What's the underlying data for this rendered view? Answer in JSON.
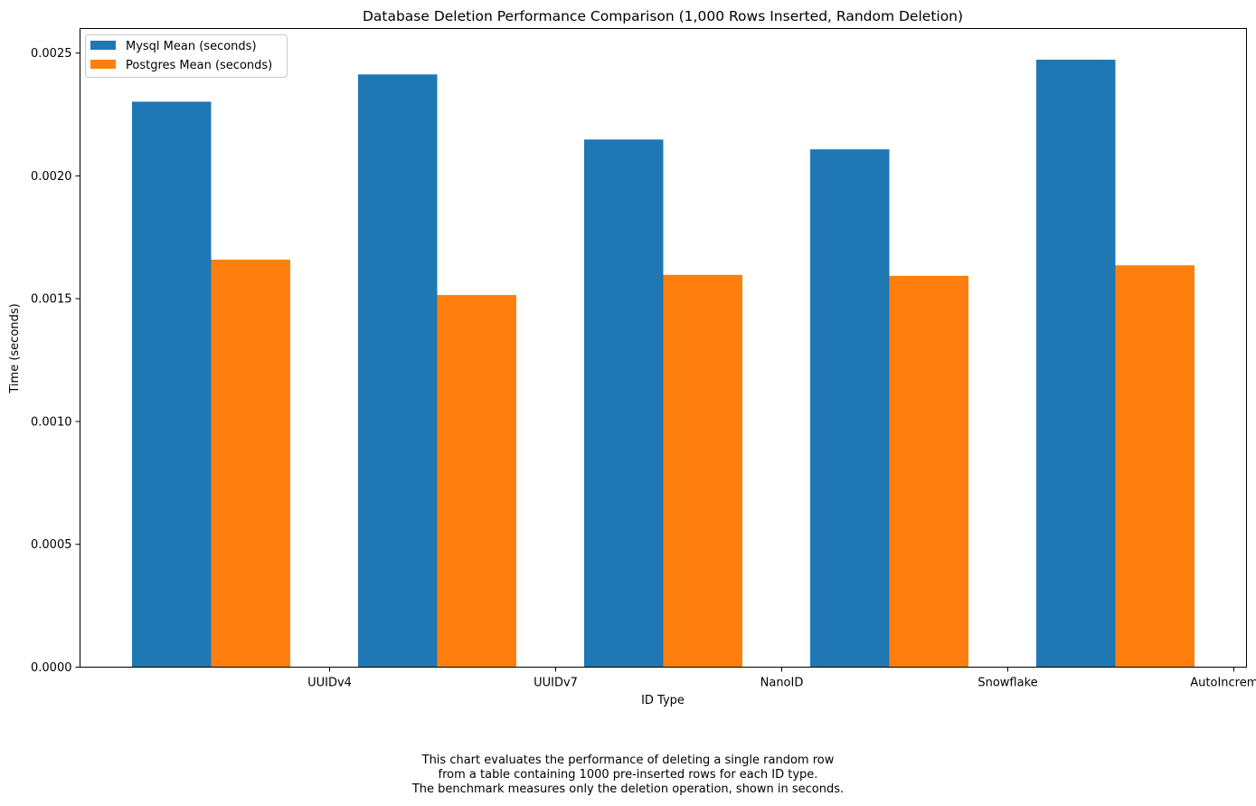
{
  "chart_data": {
    "type": "bar",
    "title": "Database Deletion Performance Comparison (1,000 Rows Inserted, Random Deletion)",
    "xlabel": "ID Type",
    "ylabel": "Time (seconds)",
    "categories": [
      "UUIDv4",
      "UUIDv7",
      "NanoID",
      "Snowflake",
      "AutoIncrement"
    ],
    "series": [
      {
        "name": "Mysql Mean (seconds)",
        "color": "#1f77b4",
        "values": [
          0.002302,
          0.002413,
          0.002148,
          0.002108,
          0.002473
        ]
      },
      {
        "name": "Postgres Mean (seconds)",
        "color": "#ff7f0e",
        "values": [
          0.001659,
          0.001515,
          0.001597,
          0.001593,
          0.001636
        ]
      }
    ],
    "ylim": [
      0,
      0.0026
    ],
    "yticks": [
      "0.0000",
      "0.0005",
      "0.0010",
      "0.0015",
      "0.0020",
      "0.0025"
    ],
    "ytick_values": [
      0,
      0.0005,
      0.001,
      0.0015,
      0.002,
      0.0025
    ],
    "grid": false,
    "legend_position": "top-left"
  },
  "caption": {
    "lines": [
      "This chart evaluates the performance of deleting a single random row",
      "from a table containing 1000 pre-inserted rows for each ID type.",
      "The benchmark measures only the deletion operation, shown in seconds."
    ]
  }
}
